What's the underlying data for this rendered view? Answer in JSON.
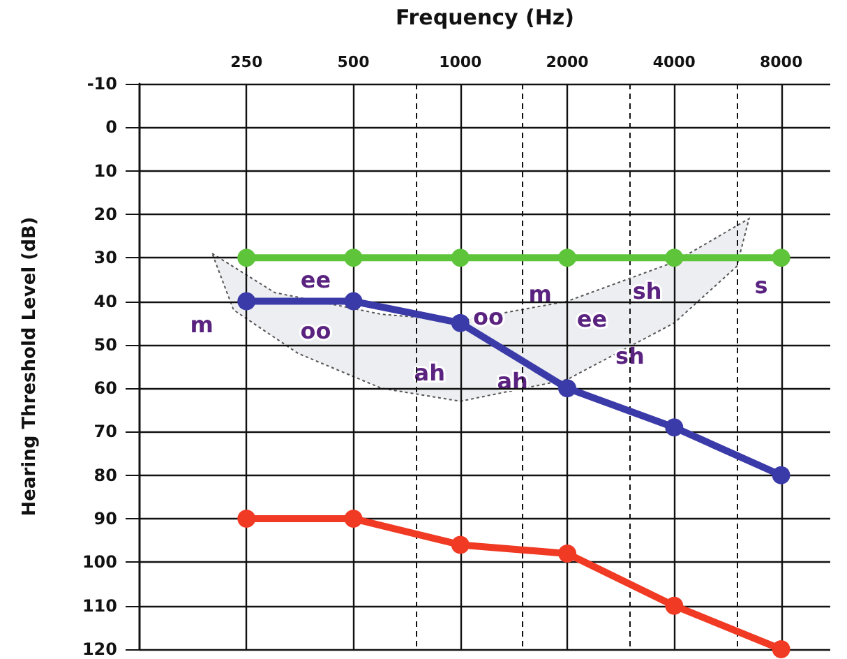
{
  "chart_data": {
    "type": "line",
    "xlabel": "Frequency (Hz)",
    "ylabel": "Hearing Threshold Level (dB)",
    "x": [
      250,
      500,
      1000,
      2000,
      4000,
      8000
    ],
    "series": [
      {
        "color": "#5ec43a",
        "values": [
          30,
          30,
          30,
          30,
          30,
          30
        ]
      },
      {
        "color": "#3a3aa8",
        "values": [
          40,
          40,
          45,
          60,
          69,
          80
        ]
      },
      {
        "color": "#f03a24",
        "values": [
          90,
          90,
          96,
          98,
          110,
          120
        ]
      }
    ],
    "xlim": [
      125,
      11000
    ],
    "xticks": [
      250,
      500,
      1000,
      2000,
      4000,
      8000,
      {
        "value": 750,
        "label": null
      },
      {
        "value": 1500,
        "label": null
      },
      {
        "value": 3000,
        "label": null
      },
      {
        "value": 6000,
        "label": null
      }
    ],
    "ylim": [
      120,
      -10
    ],
    "yticks": [
      -10,
      0,
      10,
      20,
      30,
      40,
      50,
      60,
      70,
      80,
      90,
      100,
      110,
      120
    ],
    "log": "x",
    "grid": true,
    "marker": "circle",
    "line_style": "solid",
    "annotations": [
      "m",
      "ee",
      "oo",
      "oo",
      "ah",
      "ah",
      "m",
      "ee",
      "sh",
      "sh",
      "s"
    ]
  }
}
